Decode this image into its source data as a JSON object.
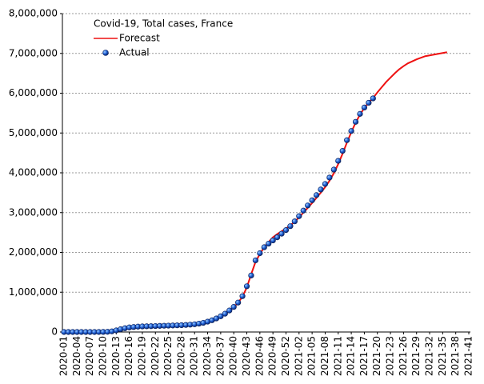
{
  "chart_data": {
    "type": "line",
    "title": "Covid-19, Total cases, France",
    "categories": [
      "2020-01",
      null,
      null,
      "2020-04",
      null,
      null,
      "2020-07",
      null,
      null,
      "2020-10",
      null,
      null,
      "2020-13",
      null,
      null,
      "2020-16",
      null,
      null,
      "2020-19",
      null,
      null,
      "2020-22",
      null,
      null,
      "2020-25",
      null,
      null,
      "2020-28",
      null,
      null,
      "2020-31",
      null,
      null,
      "2020-34",
      null,
      null,
      "2020-37",
      null,
      null,
      "2020-40",
      null,
      null,
      "2020-43",
      null,
      null,
      "2020-46",
      null,
      null,
      "2020-49",
      null,
      null,
      "2020-52",
      null,
      null,
      "2021-02",
      null,
      null,
      "2021-05",
      null,
      null,
      "2021-08",
      null,
      null,
      "2021-11",
      null,
      null,
      "2021-14",
      null,
      null,
      "2021-17",
      null,
      null,
      "2021-20",
      null,
      null,
      "2021-23",
      null,
      null,
      "2021-26",
      null,
      null,
      "2021-29",
      null,
      null,
      "2021-32",
      null,
      null,
      "2021-35",
      null,
      null,
      "2021-38",
      null,
      null,
      "2021-41"
    ],
    "series": [
      {
        "name": "Forecast",
        "color": "#ee1111",
        "style": "line",
        "values": [
          0,
          0,
          0,
          0,
          0,
          10,
          20,
          100,
          900,
          2000,
          5000,
          15000,
          38000,
          68000,
          92000,
          112000,
          124000,
          133000,
          139000,
          143000,
          146000,
          150000,
          153000,
          156000,
          160000,
          163000,
          167000,
          171000,
          176000,
          184000,
          194000,
          208000,
          228000,
          255000,
          290000,
          335000,
          390000,
          455000,
          535000,
          625000,
          735000,
          890000,
          1120000,
          1450000,
          1760000,
          1960000,
          2130000,
          2260000,
          2380000,
          2460000,
          2530000,
          2600000,
          2680000,
          2770000,
          2880000,
          3000000,
          3120000,
          3240000,
          3370000,
          3500000,
          3640000,
          3800000,
          3990000,
          4220000,
          4480000,
          4760000,
          5020000,
          5260000,
          5460000,
          5630000,
          5760000,
          5880000,
          6020000,
          6150000,
          6280000,
          6390000,
          6500000,
          6600000,
          6680000,
          6750000,
          6800000,
          6850000,
          6890000,
          6930000,
          6950000,
          6970000,
          6990000,
          7010000,
          7030000,
          null,
          null,
          null,
          null,
          null
        ]
      },
      {
        "name": "Actual",
        "color": "#1f5fd6",
        "style": "marker",
        "values": [
          0,
          0,
          0,
          0,
          6,
          12,
          12,
          100,
          1000,
          2000,
          5000,
          16000,
          40000,
          70000,
          95000,
          115000,
          125000,
          135000,
          140000,
          143000,
          146000,
          150000,
          153000,
          157000,
          160000,
          163000,
          167000,
          171000,
          177000,
          185000,
          195000,
          210000,
          230000,
          260000,
          295000,
          340000,
          395000,
          460000,
          540000,
          630000,
          740000,
          900000,
          1150000,
          1420000,
          1800000,
          1980000,
          2130000,
          2220000,
          2300000,
          2380000,
          2470000,
          2560000,
          2660000,
          2780000,
          2910000,
          3050000,
          3180000,
          3310000,
          3440000,
          3580000,
          3720000,
          3880000,
          4080000,
          4300000,
          4550000,
          4820000,
          5050000,
          5280000,
          5480000,
          5640000,
          5760000,
          5870000,
          null,
          null,
          null,
          null,
          null,
          null,
          null,
          null,
          null,
          null,
          null,
          null,
          null,
          null,
          null,
          null,
          null,
          null,
          null,
          null,
          null,
          null
        ]
      }
    ],
    "ylim": [
      0,
      8000000
    ],
    "yticks": [
      0,
      {
        "value": 1000000,
        "label": "1,000,000"
      },
      {
        "value": 2000000,
        "label": "2,000,000"
      },
      {
        "value": 3000000,
        "label": "3,000,000"
      },
      {
        "value": 4000000,
        "label": "4,000,000"
      },
      {
        "value": 5000000,
        "label": "5,000,000"
      },
      {
        "value": 6000000,
        "label": "6,000,000"
      },
      {
        "value": 7000000,
        "label": "7,000,000"
      },
      {
        "value": 8000000,
        "label": "8,000,000"
      }
    ],
    "grid": true,
    "legend": "top-left"
  }
}
